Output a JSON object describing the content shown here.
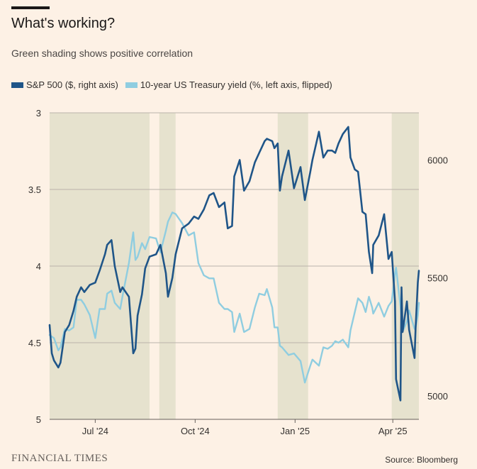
{
  "title": "What's working?",
  "subtitle": "Green shading shows positive correlation",
  "legend": {
    "sp500": "S&P 500 ($, right axis)",
    "treasury": "10-year US Treasury yield (%, left axis, flipped)"
  },
  "footer": {
    "brand": "FINANCIAL TIMES",
    "source": "Source: Bloomberg"
  },
  "colors": {
    "background": "#fdf1e5",
    "shading": "#e6e2ce",
    "sp500": "#1f5588",
    "treasury": "#8fcde0",
    "grid": "#b9b2aa"
  },
  "chart_data": {
    "type": "line",
    "x_range": [
      "2024-05-20",
      "2025-04-25"
    ],
    "x_ticks": [
      {
        "date": "2024-07-01",
        "label": "Jul '24"
      },
      {
        "date": "2024-10-01",
        "label": "Oct '24"
      },
      {
        "date": "2025-01-01",
        "label": "Jan '25"
      },
      {
        "date": "2025-04-01",
        "label": "Apr '25"
      }
    ],
    "left_axis": {
      "ticks": [
        "3",
        "3.5",
        "4",
        "4.5",
        "5"
      ],
      "min": 3,
      "max": 5,
      "inverted": true
    },
    "right_axis": {
      "ticks": [
        "5000",
        "5500",
        "6000"
      ],
      "min": 4900,
      "max": 6200
    },
    "shaded_periods": [
      [
        "2024-05-20",
        "2024-08-20"
      ],
      [
        "2024-08-29",
        "2024-09-13"
      ],
      [
        "2024-12-16",
        "2025-01-13"
      ],
      [
        "2025-03-31",
        "2025-04-25"
      ]
    ],
    "series": [
      {
        "name": "S&P 500 ($, right axis)",
        "axis": "right",
        "points": [
          [
            "2024-05-20",
            5300
          ],
          [
            "2024-05-22",
            5180
          ],
          [
            "2024-05-24",
            5150
          ],
          [
            "2024-05-28",
            5120
          ],
          [
            "2024-05-30",
            5140
          ],
          [
            "2024-06-03",
            5270
          ],
          [
            "2024-06-07",
            5300
          ],
          [
            "2024-06-11",
            5360
          ],
          [
            "2024-06-14",
            5420
          ],
          [
            "2024-06-18",
            5460
          ],
          [
            "2024-06-21",
            5440
          ],
          [
            "2024-06-26",
            5470
          ],
          [
            "2024-07-01",
            5480
          ],
          [
            "2024-07-05",
            5530
          ],
          [
            "2024-07-10",
            5600
          ],
          [
            "2024-07-12",
            5640
          ],
          [
            "2024-07-16",
            5660
          ],
          [
            "2024-07-19",
            5550
          ],
          [
            "2024-07-24",
            5440
          ],
          [
            "2024-07-26",
            5460
          ],
          [
            "2024-08-01",
            5420
          ],
          [
            "2024-08-05",
            5180
          ],
          [
            "2024-08-07",
            5200
          ],
          [
            "2024-08-09",
            5340
          ],
          [
            "2024-08-13",
            5430
          ],
          [
            "2024-08-16",
            5540
          ],
          [
            "2024-08-20",
            5590
          ],
          [
            "2024-08-26",
            5600
          ],
          [
            "2024-08-30",
            5640
          ],
          [
            "2024-09-04",
            5520
          ],
          [
            "2024-09-06",
            5420
          ],
          [
            "2024-09-10",
            5500
          ],
          [
            "2024-09-13",
            5600
          ],
          [
            "2024-09-19",
            5710
          ],
          [
            "2024-09-25",
            5730
          ],
          [
            "2024-09-30",
            5760
          ],
          [
            "2024-10-04",
            5750
          ],
          [
            "2024-10-09",
            5790
          ],
          [
            "2024-10-14",
            5850
          ],
          [
            "2024-10-18",
            5860
          ],
          [
            "2024-10-23",
            5800
          ],
          [
            "2024-10-28",
            5820
          ],
          [
            "2024-10-31",
            5710
          ],
          [
            "2024-11-04",
            5720
          ],
          [
            "2024-11-06",
            5930
          ],
          [
            "2024-11-11",
            6000
          ],
          [
            "2024-11-15",
            5870
          ],
          [
            "2024-11-20",
            5910
          ],
          [
            "2024-11-25",
            5990
          ],
          [
            "2024-11-29",
            6030
          ],
          [
            "2024-12-04",
            6080
          ],
          [
            "2024-12-06",
            6090
          ],
          [
            "2024-12-11",
            6080
          ],
          [
            "2024-12-13",
            6050
          ],
          [
            "2024-12-16",
            6070
          ],
          [
            "2024-12-18",
            5870
          ],
          [
            "2024-12-20",
            5930
          ],
          [
            "2024-12-26",
            6040
          ],
          [
            "2024-12-31",
            5880
          ],
          [
            "2025-01-06",
            5970
          ],
          [
            "2025-01-10",
            5830
          ],
          [
            "2025-01-15",
            5950
          ],
          [
            "2025-01-17",
            6000
          ],
          [
            "2025-01-23",
            6120
          ],
          [
            "2025-01-27",
            6010
          ],
          [
            "2025-01-31",
            6040
          ],
          [
            "2025-02-04",
            6040
          ],
          [
            "2025-02-07",
            6030
          ],
          [
            "2025-02-10",
            6070
          ],
          [
            "2025-02-14",
            6110
          ],
          [
            "2025-02-19",
            6140
          ],
          [
            "2025-02-21",
            6010
          ],
          [
            "2025-02-25",
            5960
          ],
          [
            "2025-02-28",
            5950
          ],
          [
            "2025-03-04",
            5780
          ],
          [
            "2025-03-07",
            5770
          ],
          [
            "2025-03-10",
            5610
          ],
          [
            "2025-03-13",
            5520
          ],
          [
            "2025-03-14",
            5640
          ],
          [
            "2025-03-19",
            5680
          ],
          [
            "2025-03-24",
            5770
          ],
          [
            "2025-03-28",
            5580
          ],
          [
            "2025-03-31",
            5610
          ],
          [
            "2025-04-03",
            5400
          ],
          [
            "2025-04-04",
            5070
          ],
          [
            "2025-04-08",
            4980
          ],
          [
            "2025-04-09",
            5460
          ],
          [
            "2025-04-10",
            5270
          ],
          [
            "2025-04-14",
            5400
          ],
          [
            "2025-04-16",
            5280
          ],
          [
            "2025-04-21",
            5160
          ],
          [
            "2025-04-22",
            5290
          ],
          [
            "2025-04-24",
            5480
          ],
          [
            "2025-04-25",
            5530
          ]
        ]
      },
      {
        "name": "10-year US Treasury yield (%, left axis, flipped)",
        "axis": "left",
        "points": [
          [
            "2024-05-20",
            4.45
          ],
          [
            "2024-05-24",
            4.47
          ],
          [
            "2024-05-28",
            4.55
          ],
          [
            "2024-05-30",
            4.53
          ],
          [
            "2024-06-03",
            4.41
          ],
          [
            "2024-06-07",
            4.42
          ],
          [
            "2024-06-11",
            4.4
          ],
          [
            "2024-06-14",
            4.22
          ],
          [
            "2024-06-18",
            4.22
          ],
          [
            "2024-06-21",
            4.25
          ],
          [
            "2024-06-26",
            4.32
          ],
          [
            "2024-07-01",
            4.47
          ],
          [
            "2024-07-05",
            4.28
          ],
          [
            "2024-07-10",
            4.28
          ],
          [
            "2024-07-12",
            4.18
          ],
          [
            "2024-07-16",
            4.16
          ],
          [
            "2024-07-19",
            4.24
          ],
          [
            "2024-07-24",
            4.28
          ],
          [
            "2024-07-26",
            4.2
          ],
          [
            "2024-08-01",
            3.98
          ],
          [
            "2024-08-05",
            3.78
          ],
          [
            "2024-08-07",
            3.96
          ],
          [
            "2024-08-09",
            3.94
          ],
          [
            "2024-08-13",
            3.85
          ],
          [
            "2024-08-16",
            3.89
          ],
          [
            "2024-08-20",
            3.81
          ],
          [
            "2024-08-26",
            3.82
          ],
          [
            "2024-08-30",
            3.91
          ],
          [
            "2024-09-04",
            3.77
          ],
          [
            "2024-09-06",
            3.71
          ],
          [
            "2024-09-10",
            3.65
          ],
          [
            "2024-09-13",
            3.66
          ],
          [
            "2024-09-19",
            3.72
          ],
          [
            "2024-09-25",
            3.8
          ],
          [
            "2024-09-30",
            3.78
          ],
          [
            "2024-10-04",
            3.98
          ],
          [
            "2024-10-09",
            4.06
          ],
          [
            "2024-10-14",
            4.08
          ],
          [
            "2024-10-18",
            4.08
          ],
          [
            "2024-10-23",
            4.24
          ],
          [
            "2024-10-28",
            4.28
          ],
          [
            "2024-10-31",
            4.28
          ],
          [
            "2024-11-04",
            4.3
          ],
          [
            "2024-11-06",
            4.43
          ],
          [
            "2024-11-11",
            4.31
          ],
          [
            "2024-11-15",
            4.43
          ],
          [
            "2024-11-20",
            4.41
          ],
          [
            "2024-11-25",
            4.27
          ],
          [
            "2024-11-29",
            4.18
          ],
          [
            "2024-12-04",
            4.19
          ],
          [
            "2024-12-06",
            4.15
          ],
          [
            "2024-12-11",
            4.27
          ],
          [
            "2024-12-13",
            4.4
          ],
          [
            "2024-12-16",
            4.4
          ],
          [
            "2024-12-18",
            4.52
          ],
          [
            "2024-12-20",
            4.53
          ],
          [
            "2024-12-26",
            4.58
          ],
          [
            "2024-12-31",
            4.57
          ],
          [
            "2025-01-06",
            4.62
          ],
          [
            "2025-01-10",
            4.76
          ],
          [
            "2025-01-15",
            4.65
          ],
          [
            "2025-01-17",
            4.61
          ],
          [
            "2025-01-23",
            4.65
          ],
          [
            "2025-01-27",
            4.53
          ],
          [
            "2025-01-31",
            4.54
          ],
          [
            "2025-02-04",
            4.52
          ],
          [
            "2025-02-07",
            4.49
          ],
          [
            "2025-02-10",
            4.5
          ],
          [
            "2025-02-14",
            4.48
          ],
          [
            "2025-02-19",
            4.53
          ],
          [
            "2025-02-21",
            4.42
          ],
          [
            "2025-02-25",
            4.3
          ],
          [
            "2025-02-28",
            4.21
          ],
          [
            "2025-03-04",
            4.24
          ],
          [
            "2025-03-07",
            4.3
          ],
          [
            "2025-03-10",
            4.2
          ],
          [
            "2025-03-13",
            4.27
          ],
          [
            "2025-03-14",
            4.31
          ],
          [
            "2025-03-19",
            4.24
          ],
          [
            "2025-03-24",
            4.33
          ],
          [
            "2025-03-28",
            4.26
          ],
          [
            "2025-03-31",
            4.23
          ],
          [
            "2025-04-03",
            4.05
          ],
          [
            "2025-04-04",
            4.01
          ],
          [
            "2025-04-08",
            4.26
          ],
          [
            "2025-04-09",
            4.34
          ],
          [
            "2025-04-10",
            4.43
          ],
          [
            "2025-04-14",
            4.36
          ],
          [
            "2025-04-16",
            4.29
          ],
          [
            "2025-04-21",
            4.41
          ],
          [
            "2025-04-22",
            4.4
          ],
          [
            "2025-04-24",
            4.32
          ],
          [
            "2025-04-25",
            4.24
          ]
        ]
      }
    ]
  }
}
